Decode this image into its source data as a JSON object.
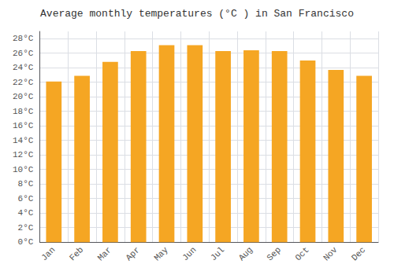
{
  "chart_data": {
    "type": "bar",
    "title": "Average monthly temperatures (°C ) in San Francisco",
    "categories": [
      "Jan",
      "Feb",
      "Mar",
      "Apr",
      "May",
      "Jun",
      "Jul",
      "Aug",
      "Sep",
      "Oct",
      "Nov",
      "Dec"
    ],
    "values": [
      22.1,
      22.9,
      24.8,
      26.3,
      27.1,
      27.1,
      26.3,
      26.4,
      26.3,
      25.0,
      23.7,
      22.9
    ],
    "color": "#F5A623",
    "ylim": [
      0,
      29
    ],
    "yticks": [
      {
        "value": 0,
        "label": "0°C"
      },
      {
        "value": 2,
        "label": "2°C"
      },
      {
        "value": 4,
        "label": "4°C"
      },
      {
        "value": 6,
        "label": "6°C"
      },
      {
        "value": 8,
        "label": "8°C"
      },
      {
        "value": 10,
        "label": "10°C"
      },
      {
        "value": 12,
        "label": "12°C"
      },
      {
        "value": 14,
        "label": "14°C"
      },
      {
        "value": 16,
        "label": "16°C"
      },
      {
        "value": 18,
        "label": "18°C"
      },
      {
        "value": 20,
        "label": "20°C"
      },
      {
        "value": 22,
        "label": "22°C"
      },
      {
        "value": 24,
        "label": "24°C"
      },
      {
        "value": 26,
        "label": "26°C"
      },
      {
        "value": 28,
        "label": "28°C"
      }
    ],
    "grid": true
  }
}
